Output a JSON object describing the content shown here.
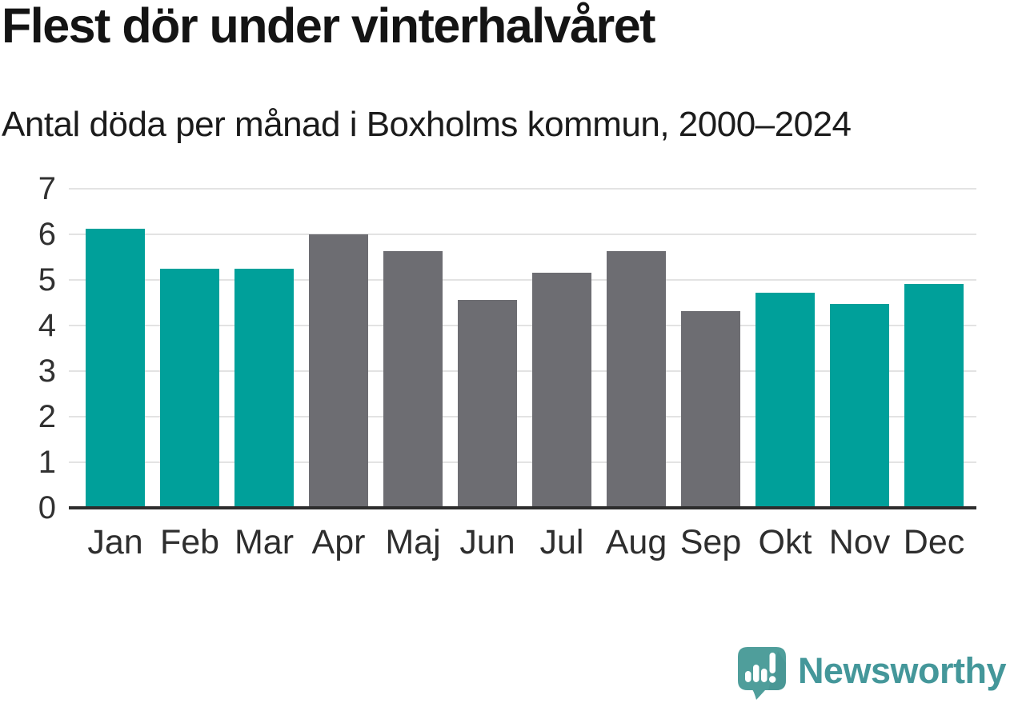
{
  "header": {
    "title": "Flest dör under vinterhalvåret",
    "subtitle": "Antal döda per månad i Boxholms kommun, 2000–2024"
  },
  "chart_data": {
    "type": "bar",
    "title": "Flest dör under vinterhalvåret",
    "subtitle": "Antal döda per månad i Boxholms kommun, 2000–2024",
    "categories": [
      "Jan",
      "Feb",
      "Mar",
      "Apr",
      "Maj",
      "Jun",
      "Jul",
      "Aug",
      "Sep",
      "Okt",
      "Nov",
      "Dec"
    ],
    "values": [
      6.12,
      5.24,
      5.24,
      6.0,
      5.64,
      4.56,
      5.16,
      5.64,
      4.32,
      4.72,
      4.48,
      4.92
    ],
    "highlighted": [
      true,
      true,
      true,
      false,
      false,
      false,
      false,
      false,
      false,
      true,
      true,
      true
    ],
    "ylabel": "",
    "xlabel": "",
    "ylim": [
      0,
      7
    ],
    "yticks": [
      0,
      1,
      2,
      3,
      4,
      5,
      6,
      7
    ],
    "grid": true,
    "legend_position": "none",
    "colors": {
      "highlight_bar": "#00a09a",
      "regular_bar": "#6d6d72",
      "gridline": "#e3e3e3",
      "axis_line": "#2d2d2d",
      "tick_label": "#313131"
    }
  },
  "branding": {
    "name": "Newsworthy",
    "logo_icon": "newsworthy-speech-bubble-bar-chart-icon",
    "text_color": "#44979a",
    "icon_color": "#4f9e9b"
  }
}
